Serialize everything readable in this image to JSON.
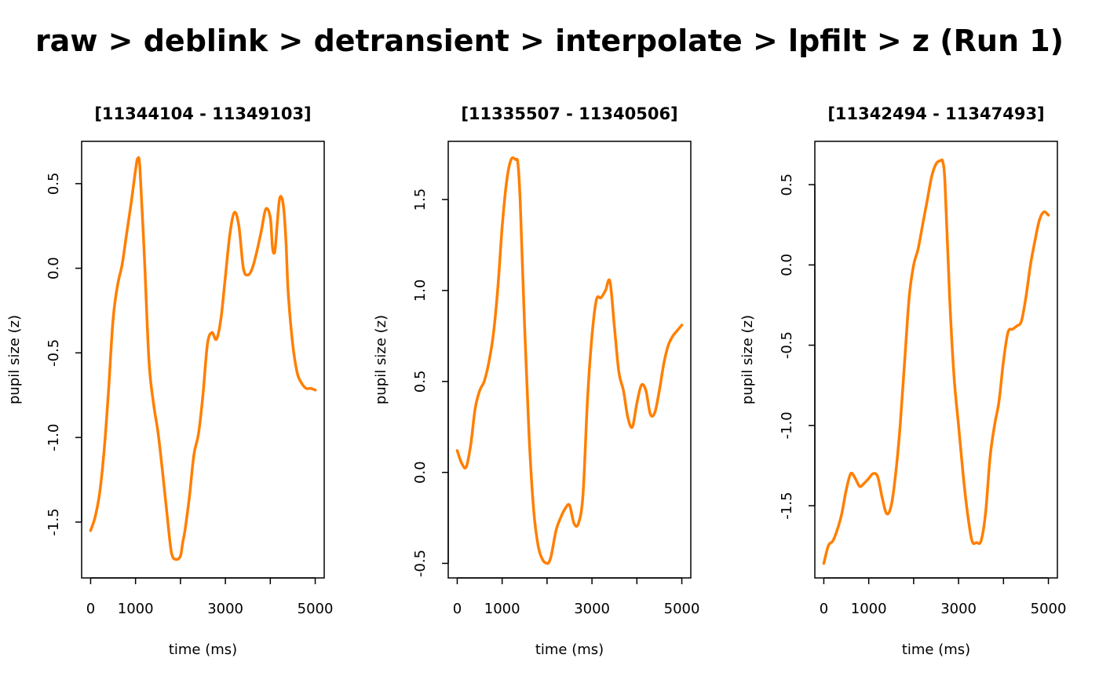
{
  "title": "raw > deblink > detransient > interpolate > lpfilt > z (Run 1)",
  "colors": {
    "line": "#FF7F00",
    "axis": "#000000"
  },
  "chart_data": [
    {
      "type": "line",
      "title": "[11344104 - 11349103]",
      "xlabel": "time (ms)",
      "ylabel": "pupil size (z)",
      "xticks": [
        0,
        1000,
        2000,
        3000,
        4000,
        5000
      ],
      "xticklabels": [
        "0",
        "1000",
        "",
        "3000",
        "",
        "5000"
      ],
      "yticks": [
        -1.5,
        -1.0,
        -0.5,
        0.0,
        0.5
      ],
      "yticklabels": [
        "-1.5",
        "-1.0",
        "-0.5",
        "0.0",
        "0.5"
      ],
      "xlim": [
        -200,
        5200
      ],
      "ylim": [
        -1.83,
        0.75
      ],
      "series": [
        {
          "x": [
            0,
            100,
            200,
            300,
            400,
            500,
            600,
            700,
            800,
            900,
            1000,
            1050,
            1100,
            1200,
            1300,
            1400,
            1500,
            1600,
            1700,
            1800,
            1900,
            2000,
            2050,
            2100,
            2200,
            2300,
            2400,
            2500,
            2600,
            2700,
            2800,
            2900,
            3000,
            3100,
            3200,
            3300,
            3400,
            3500,
            3600,
            3700,
            3800,
            3900,
            4000,
            4050,
            4100,
            4150,
            4200,
            4250,
            4300,
            4350,
            4400,
            4500,
            4600,
            4700,
            4800,
            4900,
            5000
          ],
          "y": [
            -1.55,
            -1.47,
            -1.33,
            -1.08,
            -0.72,
            -0.3,
            -0.1,
            0.02,
            0.2,
            0.38,
            0.58,
            0.65,
            0.58,
            0.05,
            -0.55,
            -0.8,
            -0.97,
            -1.2,
            -1.45,
            -1.68,
            -1.72,
            -1.7,
            -1.62,
            -1.55,
            -1.35,
            -1.1,
            -0.98,
            -0.75,
            -0.45,
            -0.38,
            -0.42,
            -0.3,
            -0.05,
            0.2,
            0.33,
            0.25,
            0.0,
            -0.04,
            0.0,
            0.1,
            0.22,
            0.35,
            0.3,
            0.12,
            0.1,
            0.25,
            0.4,
            0.42,
            0.35,
            0.15,
            -0.15,
            -0.45,
            -0.62,
            -0.68,
            -0.71,
            -0.71,
            -0.72
          ]
        }
      ]
    },
    {
      "type": "line",
      "title": "[11335507 - 11340506]",
      "xlabel": "time (ms)",
      "ylabel": "pupil size (z)",
      "xticks": [
        0,
        1000,
        2000,
        3000,
        4000,
        5000
      ],
      "xticklabels": [
        "0",
        "1000",
        "",
        "3000",
        "",
        "5000"
      ],
      "yticks": [
        -0.5,
        0.0,
        0.5,
        1.0,
        1.5
      ],
      "yticklabels": [
        "-0.5",
        "0.0",
        "0.5",
        "1.0",
        "1.5"
      ],
      "xlim": [
        -200,
        5200
      ],
      "ylim": [
        -0.58,
        1.82
      ],
      "series": [
        {
          "x": [
            0,
            100,
            200,
            300,
            400,
            500,
            600,
            700,
            800,
            900,
            1000,
            1100,
            1200,
            1300,
            1350,
            1400,
            1500,
            1600,
            1700,
            1800,
            1900,
            2000,
            2050,
            2100,
            2200,
            2300,
            2400,
            2500,
            2600,
            2700,
            2800,
            2900,
            3000,
            3100,
            3200,
            3300,
            3400,
            3500,
            3600,
            3700,
            3800,
            3900,
            4000,
            4100,
            4200,
            4300,
            4400,
            4500,
            4600,
            4700,
            4800,
            4900,
            5000
          ],
          "y": [
            0.12,
            0.05,
            0.03,
            0.15,
            0.35,
            0.45,
            0.5,
            0.6,
            0.75,
            1.0,
            1.35,
            1.6,
            1.72,
            1.72,
            1.7,
            1.5,
            0.8,
            0.2,
            -0.2,
            -0.4,
            -0.48,
            -0.5,
            -0.49,
            -0.45,
            -0.32,
            -0.25,
            -0.2,
            -0.18,
            -0.28,
            -0.28,
            -0.12,
            0.4,
            0.75,
            0.95,
            0.96,
            1.0,
            1.05,
            0.8,
            0.55,
            0.45,
            0.3,
            0.25,
            0.38,
            0.48,
            0.45,
            0.32,
            0.33,
            0.45,
            0.6,
            0.7,
            0.75,
            0.78,
            0.81
          ]
        }
      ]
    },
    {
      "type": "line",
      "title": "[11342494 - 11347493]",
      "xlabel": "time (ms)",
      "ylabel": "pupil size (z)",
      "xticks": [
        0,
        1000,
        2000,
        3000,
        4000,
        5000
      ],
      "xticklabels": [
        "0",
        "1000",
        "",
        "3000",
        "",
        "5000"
      ],
      "yticks": [
        -1.5,
        -1.0,
        -0.5,
        0.0,
        0.5
      ],
      "yticklabels": [
        "-1.5",
        "-1.0",
        "-0.5",
        "0.0",
        "0.5"
      ],
      "xlim": [
        -200,
        5200
      ],
      "ylim": [
        -1.95,
        0.77
      ],
      "series": [
        {
          "x": [
            0,
            100,
            200,
            300,
            400,
            500,
            600,
            700,
            800,
            900,
            1000,
            1100,
            1200,
            1300,
            1400,
            1500,
            1600,
            1700,
            1800,
            1900,
            2000,
            2100,
            2200,
            2300,
            2400,
            2500,
            2600,
            2650,
            2700,
            2800,
            2900,
            3000,
            3100,
            3200,
            3300,
            3400,
            3500,
            3600,
            3700,
            3800,
            3900,
            4000,
            4100,
            4200,
            4300,
            4400,
            4500,
            4600,
            4700,
            4800,
            4900,
            5000
          ],
          "y": [
            -1.86,
            -1.75,
            -1.72,
            -1.65,
            -1.55,
            -1.4,
            -1.3,
            -1.33,
            -1.38,
            -1.36,
            -1.33,
            -1.3,
            -1.32,
            -1.45,
            -1.55,
            -1.5,
            -1.3,
            -1.0,
            -0.6,
            -0.2,
            0.0,
            0.1,
            0.25,
            0.4,
            0.55,
            0.63,
            0.65,
            0.64,
            0.5,
            -0.2,
            -0.7,
            -1.0,
            -1.3,
            -1.55,
            -1.72,
            -1.73,
            -1.72,
            -1.55,
            -1.2,
            -1.0,
            -0.85,
            -0.6,
            -0.42,
            -0.4,
            -0.38,
            -0.35,
            -0.2,
            0.0,
            0.15,
            0.28,
            0.33,
            0.31
          ]
        }
      ]
    }
  ]
}
